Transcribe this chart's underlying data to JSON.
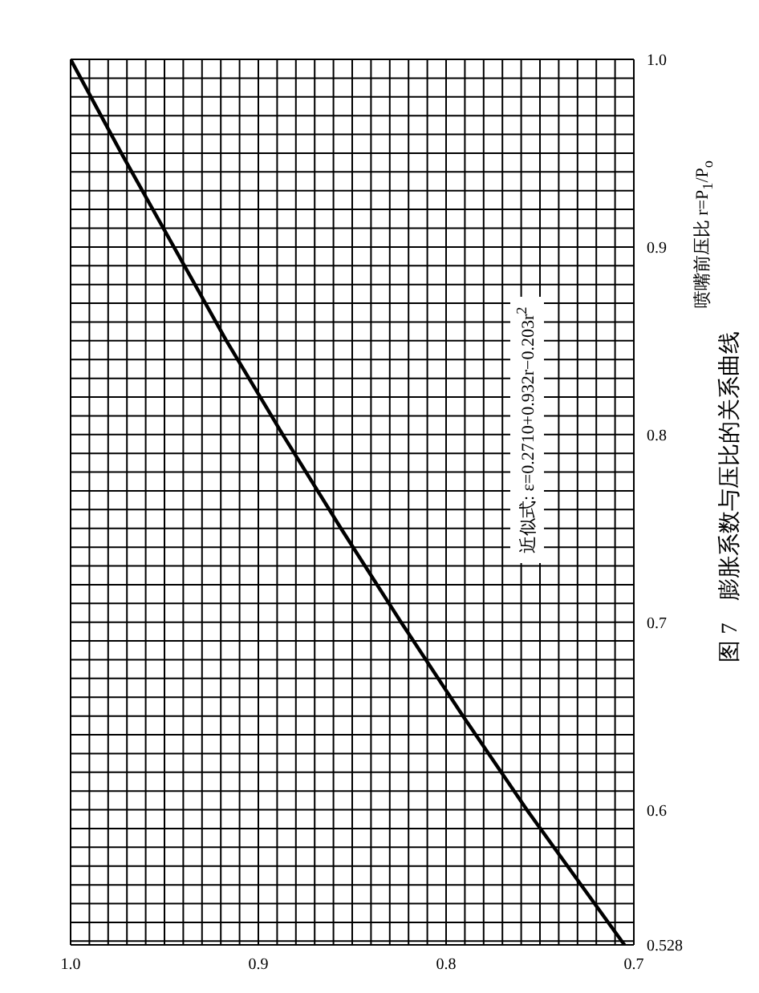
{
  "chart_data": {
    "type": "line",
    "title": "图 7　膨胀系数与压比的关系曲线",
    "ylabel": "喷嘴前压比 r=P$_{1}$/P$_{o}$",
    "annotations": [
      "近似式: ε=0.2710+0.932r−0.203r$^{2}$"
    ],
    "x": [
      0.705,
      0.757,
      0.791,
      0.824,
      0.856,
      0.887,
      0.917,
      0.945,
      0.973,
      1.0
    ],
    "series": [
      {
        "color": "#000000",
        "values": [
          0.528,
          0.6,
          0.65,
          0.7,
          0.75,
          0.8,
          0.85,
          0.9,
          0.95,
          1.0
        ]
      }
    ],
    "ylim": [
      0.528,
      1.0
    ],
    "yticks": [
      0.528,
      {
        "value": 0.53,
        "label": null
      },
      {
        "value": 0.54,
        "label": null
      },
      {
        "value": 0.55,
        "label": null
      },
      {
        "value": 0.56,
        "label": null
      },
      {
        "value": 0.57,
        "label": null
      },
      {
        "value": 0.58,
        "label": null
      },
      {
        "value": 0.59,
        "label": null
      },
      0.6,
      {
        "value": 0.61,
        "label": null
      },
      {
        "value": 0.62,
        "label": null
      },
      {
        "value": 0.63,
        "label": null
      },
      {
        "value": 0.64,
        "label": null
      },
      {
        "value": 0.65,
        "label": null
      },
      {
        "value": 0.66,
        "label": null
      },
      {
        "value": 0.67,
        "label": null
      },
      {
        "value": 0.68,
        "label": null
      },
      {
        "value": 0.69,
        "label": null
      },
      0.7,
      {
        "value": 0.71,
        "label": null
      },
      {
        "value": 0.72,
        "label": null
      },
      {
        "value": 0.73,
        "label": null
      },
      {
        "value": 0.74,
        "label": null
      },
      {
        "value": 0.75,
        "label": null
      },
      {
        "value": 0.76,
        "label": null
      },
      {
        "value": 0.77,
        "label": null
      },
      {
        "value": 0.78,
        "label": null
      },
      {
        "value": 0.79,
        "label": null
      },
      0.8,
      {
        "value": 0.81,
        "label": null
      },
      {
        "value": 0.82,
        "label": null
      },
      {
        "value": 0.83,
        "label": null
      },
      {
        "value": 0.84,
        "label": null
      },
      {
        "value": 0.85,
        "label": null
      },
      {
        "value": 0.86,
        "label": null
      },
      {
        "value": 0.87,
        "label": null
      },
      {
        "value": 0.88,
        "label": null
      },
      {
        "value": 0.89,
        "label": null
      },
      0.9,
      {
        "value": 0.91,
        "label": null
      },
      {
        "value": 0.92,
        "label": null
      },
      {
        "value": 0.93,
        "label": null
      },
      {
        "value": 0.94,
        "label": null
      },
      {
        "value": 0.95,
        "label": null
      },
      {
        "value": 0.96,
        "label": null
      },
      {
        "value": 0.97,
        "label": null
      },
      {
        "value": 0.98,
        "label": null
      },
      {
        "value": 0.99,
        "label": null
      },
      {
        "value": 1,
        "label": "1.0"
      }
    ],
    "xlim": [
      1.0,
      0.7
    ],
    "xticks": [
      0.7,
      {
        "value": 0.71,
        "label": null
      },
      {
        "value": 0.72,
        "label": null
      },
      {
        "value": 0.73,
        "label": null
      },
      {
        "value": 0.74,
        "label": null
      },
      {
        "value": 0.75,
        "label": null
      },
      {
        "value": 0.76,
        "label": null
      },
      {
        "value": 0.77,
        "label": null
      },
      {
        "value": 0.78,
        "label": null
      },
      {
        "value": 0.79,
        "label": null
      },
      0.8,
      {
        "value": 0.81,
        "label": null
      },
      {
        "value": 0.82,
        "label": null
      },
      {
        "value": 0.83,
        "label": null
      },
      {
        "value": 0.84,
        "label": null
      },
      {
        "value": 0.85,
        "label": null
      },
      {
        "value": 0.86,
        "label": null
      },
      {
        "value": 0.87,
        "label": null
      },
      {
        "value": 0.88,
        "label": null
      },
      {
        "value": 0.89,
        "label": null
      },
      0.9,
      {
        "value": 0.91,
        "label": null
      },
      {
        "value": 0.92,
        "label": null
      },
      {
        "value": 0.93,
        "label": null
      },
      {
        "value": 0.94,
        "label": null
      },
      {
        "value": 0.95,
        "label": null
      },
      {
        "value": 0.96,
        "label": null
      },
      {
        "value": 0.97,
        "label": null
      },
      {
        "value": 0.98,
        "label": null
      },
      {
        "value": 0.99,
        "label": null
      },
      {
        "value": 1,
        "label": "1.0"
      }
    ],
    "grid": true,
    "legend": false
  }
}
